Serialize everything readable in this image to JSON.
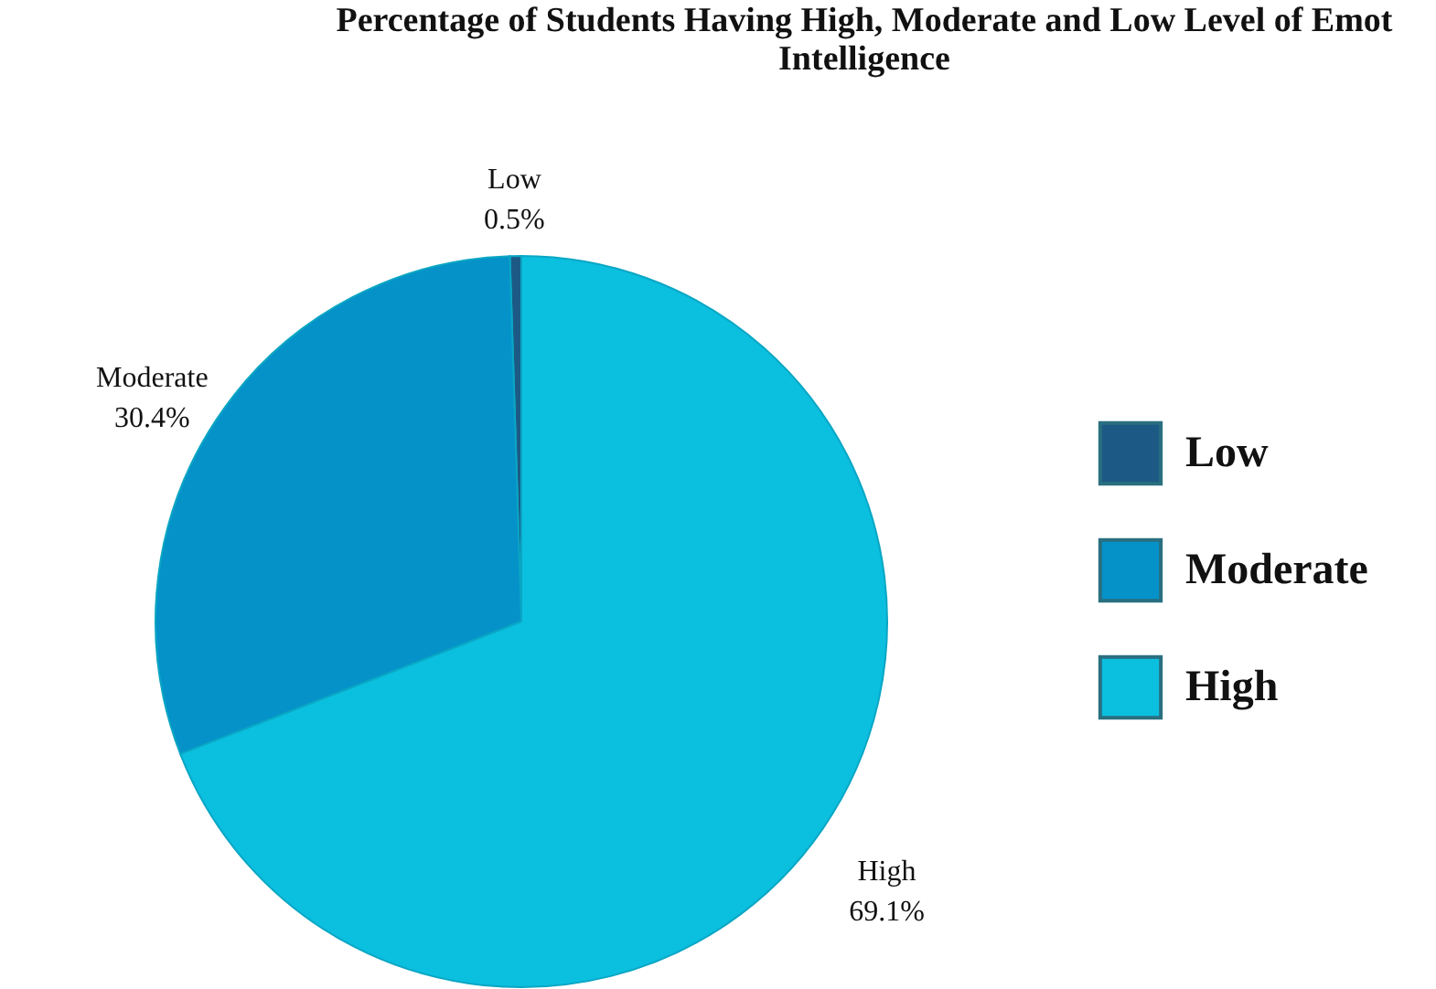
{
  "chart_data": {
    "type": "pie",
    "title": "Percentage of Students Having High, Moderate and Low Level of Emot Intelligence",
    "categories": [
      "Low",
      "Moderate",
      "High"
    ],
    "values": [
      0.5,
      30.4,
      69.1
    ],
    "value_labels": [
      "0.5%",
      "30.4%",
      "69.1%"
    ],
    "colors": [
      "#1c5a85",
      "#0592c9",
      "#0bbfdf"
    ],
    "legend": "right"
  }
}
